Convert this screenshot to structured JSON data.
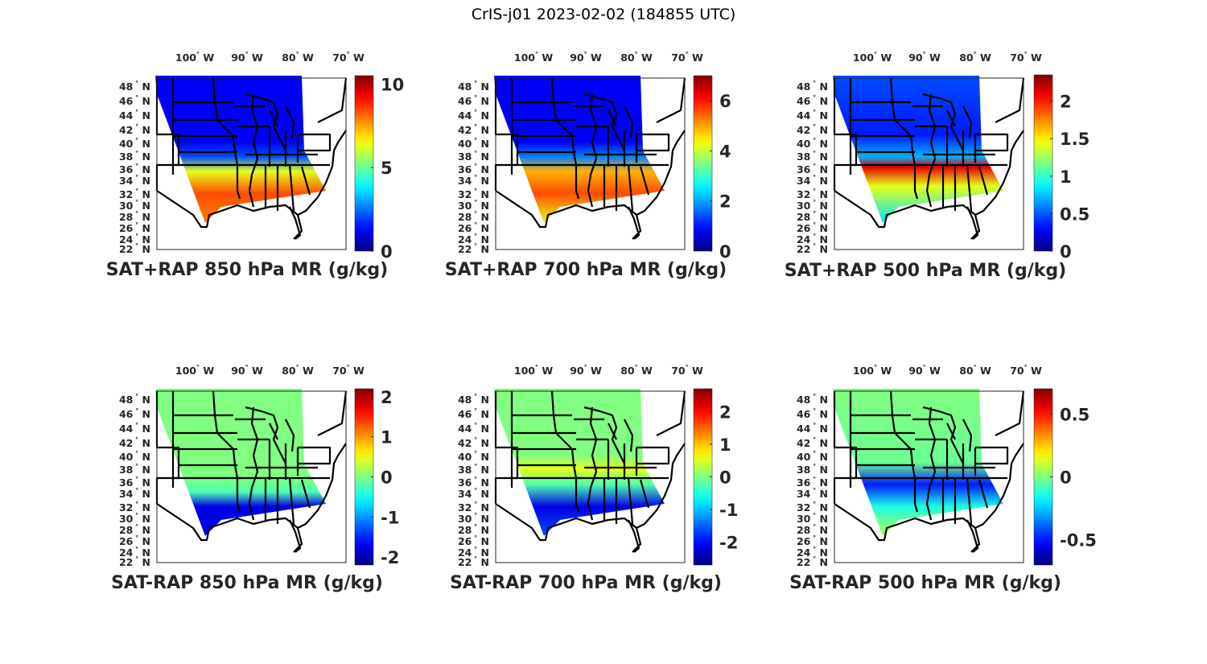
{
  "figure": {
    "suptitle": "CrIS-j01 2023-02-02 (184855 UTC)"
  },
  "chart_data": [
    {
      "type": "heatmap",
      "title": "SAT+RAP 850 hPa MR (g/kg)",
      "variable": "water vapor mixing ratio",
      "units": "g/kg",
      "lon_ticks": [
        "100° W",
        "90° W",
        "80° W",
        "70° W"
      ],
      "lat_ticks": [
        "48° N",
        "46° N",
        "44° N",
        "42° N",
        "40° N",
        "38° N",
        "36° N",
        "34° N",
        "32° N",
        "30° N",
        "28° N",
        "26° N",
        "24° N",
        "22° N"
      ],
      "colorbar": {
        "colormap": "jet",
        "range": [
          0,
          10.5
        ],
        "ticks": [
          0,
          5,
          10
        ],
        "tick_labels": [
          "0",
          "5",
          "10"
        ]
      },
      "description": "Low values (~1 g/kg) over northern/central US; high values (7-10 g/kg) over Gulf Coast and southeast"
    },
    {
      "type": "heatmap",
      "title": "SAT+RAP 700 hPa MR (g/kg)",
      "variable": "water vapor mixing ratio",
      "units": "g/kg",
      "lon_ticks": [
        "100° W",
        "90° W",
        "80° W",
        "70° W"
      ],
      "lat_ticks": [
        "48° N",
        "46° N",
        "44° N",
        "42° N",
        "40° N",
        "38° N",
        "36° N",
        "34° N",
        "32° N",
        "30° N",
        "28° N",
        "26° N",
        "24° N",
        "22° N"
      ],
      "colorbar": {
        "colormap": "jet",
        "range": [
          0,
          7
        ],
        "ticks": [
          0,
          2,
          4,
          6
        ],
        "tick_labels": [
          "0",
          "2",
          "4",
          "6"
        ]
      },
      "description": "Low values (~1 g/kg) in north; 5-7 g/kg over southern states"
    },
    {
      "type": "heatmap",
      "title": "SAT+RAP 500 hPa MR (g/kg)",
      "variable": "water vapor mixing ratio",
      "units": "g/kg",
      "lon_ticks": [
        "100° W",
        "90° W",
        "80° W",
        "70° W"
      ],
      "lat_ticks": [
        "48° N",
        "46° N",
        "44° N",
        "42° N",
        "40° N",
        "38° N",
        "36° N",
        "34° N",
        "32° N",
        "30° N",
        "28° N",
        "26° N",
        "24° N",
        "22° N"
      ],
      "colorbar": {
        "colormap": "jet",
        "range": [
          0,
          2.35
        ],
        "ticks": [
          0,
          0.5,
          1,
          1.5,
          2
        ],
        "tick_labels": [
          "0",
          "0.5",
          "1",
          "1.5",
          "2"
        ]
      },
      "description": "Mostly 0.2-0.6 g/kg; band of 2+ g/kg across Tennessee/Alabama/Georgia"
    },
    {
      "type": "heatmap",
      "title": "SAT-RAP 850 hPa MR (g/kg)",
      "variable": "mixing ratio difference",
      "units": "g/kg",
      "lon_ticks": [
        "100° W",
        "90° W",
        "80° W",
        "70° W"
      ],
      "lat_ticks": [
        "48° N",
        "46° N",
        "44° N",
        "42° N",
        "40° N",
        "38° N",
        "36° N",
        "34° N",
        "32° N",
        "30° N",
        "28° N",
        "26° N",
        "24° N",
        "22° N"
      ],
      "colorbar": {
        "colormap": "jet",
        "range": [
          -2.2,
          2.2
        ],
        "ticks": [
          -2,
          -1,
          0,
          1,
          2
        ],
        "tick_labels": [
          "-2",
          "-1",
          "0",
          "1",
          "2"
        ]
      },
      "description": "Near 0 over north/central; strong negative (-2) along Gulf Coast"
    },
    {
      "type": "heatmap",
      "title": "SAT-RAP 700 hPa MR (g/kg)",
      "variable": "mixing ratio difference",
      "units": "g/kg",
      "lon_ticks": [
        "100° W",
        "90° W",
        "80° W",
        "70° W"
      ],
      "lat_ticks": [
        "48° N",
        "46° N",
        "44° N",
        "42° N",
        "40° N",
        "38° N",
        "36° N",
        "34° N",
        "32° N",
        "30° N",
        "28° N",
        "26° N",
        "24° N",
        "22° N"
      ],
      "colorbar": {
        "colormap": "jet",
        "range": [
          -2.7,
          2.7
        ],
        "ticks": [
          -2,
          -1,
          0,
          1,
          2
        ],
        "tick_labels": [
          "-2",
          "-1",
          "0",
          "1",
          "2"
        ]
      },
      "description": "Near 0 in north; positive (~1) band over Kansas/Missouri; negative (-2.5) along Gulf Coast"
    },
    {
      "type": "heatmap",
      "title": "SAT-RAP 500 hPa MR (g/kg)",
      "variable": "mixing ratio difference",
      "units": "g/kg",
      "lon_ticks": [
        "100° W",
        "90° W",
        "80° W",
        "70° W"
      ],
      "lat_ticks": [
        "48° N",
        "46° N",
        "44° N",
        "42° N",
        "40° N",
        "38° N",
        "36° N",
        "34° N",
        "32° N",
        "30° N",
        "28° N",
        "26° N",
        "24° N",
        "22° N"
      ],
      "colorbar": {
        "colormap": "jet",
        "range": [
          -0.7,
          0.7
        ],
        "ticks": [
          -0.5,
          0,
          0.5
        ],
        "tick_labels": [
          "-0.5",
          "0",
          "0.5"
        ]
      },
      "description": "Near 0 mostly; strong negative over Louisiana/Mississippi/Arkansas; positive spots in Georgia/Carolinas"
    }
  ]
}
